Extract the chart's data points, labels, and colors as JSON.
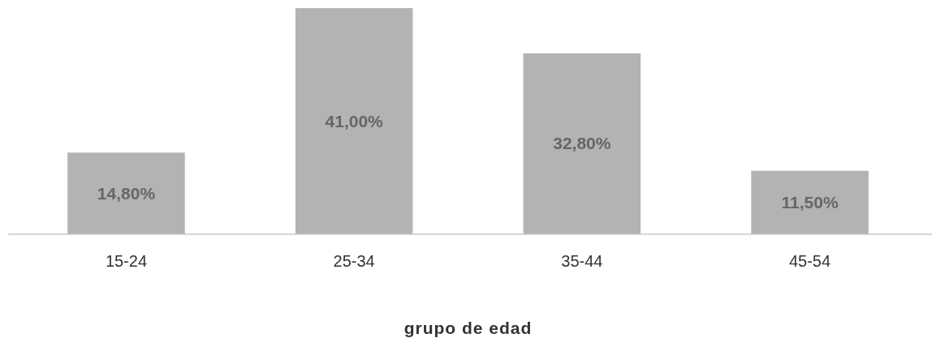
{
  "chart_data": {
    "type": "bar",
    "xlabel": "grupo de edad",
    "categories": [
      "15-24",
      "25-34",
      "35-44",
      "45-54"
    ],
    "values": [
      14.8,
      41.0,
      32.8,
      11.5
    ],
    "color": "#b3b3b3",
    "value_labels": [
      "14,80%",
      "41,00%",
      "32,80%",
      "11,50%"
    ],
    "tick_labels": "x"
  }
}
